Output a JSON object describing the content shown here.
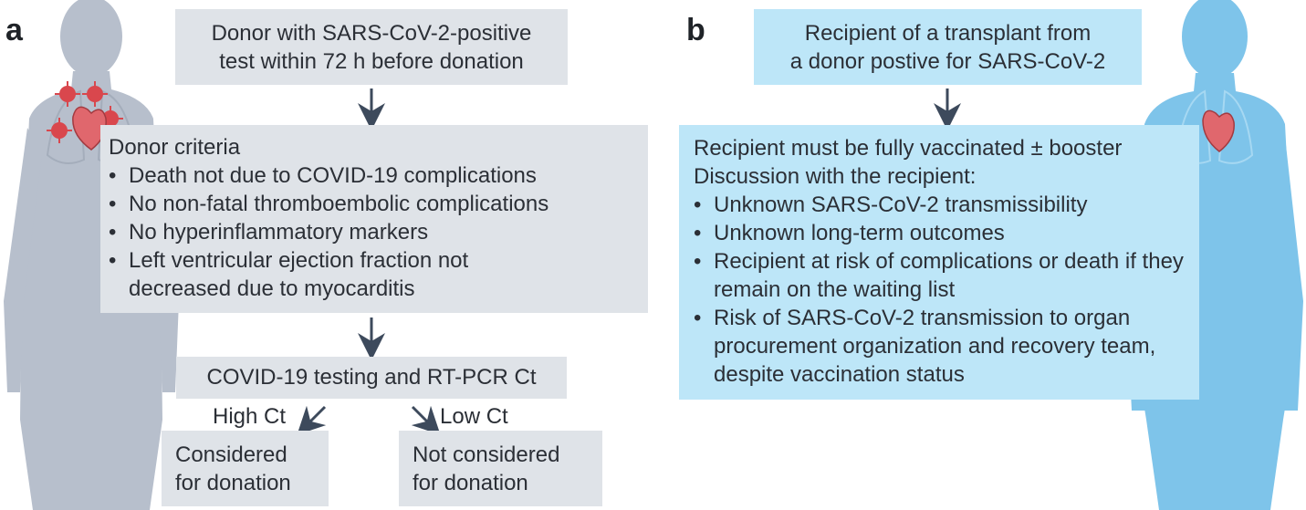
{
  "panel_a": {
    "letter": "a",
    "donor_box": [
      "Donor with SARS-CoV-2-positive",
      "test within 72 h before donation"
    ],
    "criteria_title": "Donor criteria",
    "criteria_items": [
      "Death not due to COVID-19 complications",
      "No non-fatal thromboembolic complications",
      "No hyperinflammatory markers",
      "Left ventricular ejection fraction not decreased due to myocarditis"
    ],
    "testing_box": "COVID-19 testing and RT-PCR Ct",
    "high_ct_label": "High Ct",
    "low_ct_label": "Low Ct",
    "considered_box": [
      "Considered",
      "for donation"
    ],
    "not_considered_box": [
      "Not considered",
      "for donation"
    ]
  },
  "panel_b": {
    "letter": "b",
    "recipient_box": [
      "Recipient of a transplant from",
      "a donor postive for SARS-CoV-2"
    ],
    "vaccinated_line": "Recipient must be fully vaccinated ± booster",
    "discussion_line": "Discussion with the recipient:",
    "discussion_items": [
      "Unknown SARS-CoV-2 transmissibility",
      "Unknown long-term outcomes",
      "Recipient at risk of complications or death if they remain on the waiting list",
      "Risk of SARS-CoV-2 transmission to organ procurement organization and recovery team, despite vaccination status"
    ]
  },
  "colors": {
    "grey_box": "#dfe3e8",
    "blue_box": "#bde6f8",
    "arrow": "#3d4a5c",
    "grey_body": "#b7bfcc",
    "blue_body": "#7ec4ea",
    "virus": "#d9474d",
    "heart": "#e0676d"
  }
}
